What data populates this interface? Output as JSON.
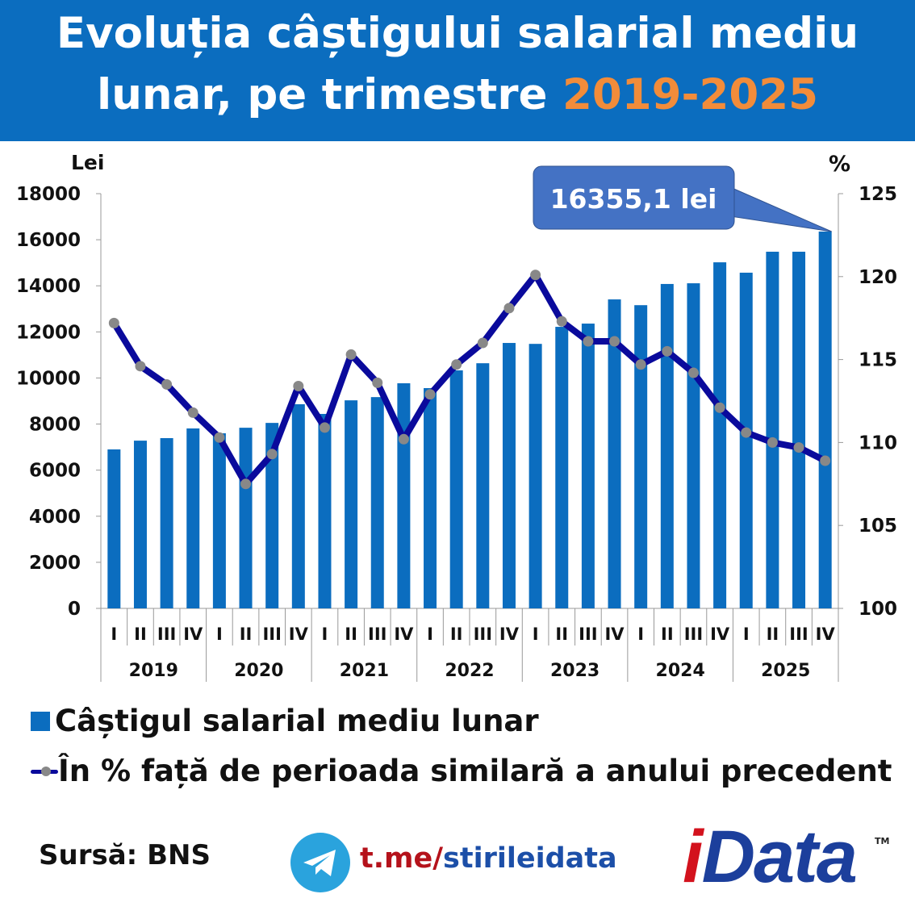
{
  "title": {
    "line1": "Evoluția câștigului salarial mediu",
    "line2_prefix": "lunar, pe trimestre ",
    "line2_highlight": "2019-2025"
  },
  "colors": {
    "banner": "#0b6dbf",
    "highlight": "#f28c3a",
    "bars": "#0b6dbf",
    "line": "#0a0a9c",
    "markers": "#888888",
    "callout": "#4472c4"
  },
  "chart_data": {
    "type": "bar+line",
    "categories_quarters": [
      "I",
      "II",
      "III",
      "IV",
      "I",
      "II",
      "III",
      "IV",
      "I",
      "II",
      "III",
      "IV",
      "I",
      "II",
      "III",
      "IV",
      "I",
      "II",
      "III",
      "IV",
      "I",
      "II",
      "III",
      "IV",
      "I",
      "II",
      "III",
      "IV"
    ],
    "years": [
      "2019",
      "2020",
      "2021",
      "2022",
      "2023",
      "2024",
      "2025"
    ],
    "y_left_label": "Lei",
    "y_left_ticks": [
      "0",
      "2000",
      "4000",
      "6000",
      "8000",
      "10000",
      "12000",
      "14000",
      "16000",
      "18000"
    ],
    "y_left_range": [
      0,
      18000
    ],
    "y_right_label": "%",
    "y_right_ticks": [
      "100",
      "105",
      "110",
      "115",
      "120",
      "125"
    ],
    "y_right_range": [
      100,
      125
    ],
    "series": [
      {
        "name": "Câștigul salarial mediu lunar",
        "type": "bar",
        "axis": "left",
        "values": [
          6900,
          7280,
          7390,
          7810,
          7600,
          7840,
          8050,
          8860,
          8440,
          9030,
          9170,
          9770,
          9560,
          10330,
          10640,
          11520,
          11480,
          12220,
          12360,
          13410,
          13160,
          14080,
          14110,
          15020,
          14570,
          15480,
          15480,
          16355.1
        ]
      },
      {
        "name": "În % față de perioada similară a anului precedent",
        "type": "line",
        "axis": "right",
        "values": [
          117.2,
          114.6,
          113.5,
          111.8,
          110.3,
          107.5,
          109.3,
          113.4,
          110.9,
          115.3,
          113.6,
          110.2,
          112.9,
          114.7,
          116.0,
          118.1,
          120.1,
          117.3,
          116.1,
          116.1,
          114.7,
          115.5,
          114.2,
          112.1,
          110.6,
          110.0,
          109.7,
          108.9
        ]
      }
    ],
    "annotation": "16355,1 lei"
  },
  "legend": {
    "bar": "Câștigul salarial mediu lunar",
    "line": "În % față de perioada similară a anului precedent"
  },
  "footer": {
    "source": "Sursă: BNS",
    "link_prefix": "t.me/",
    "link_suffix": "stirileidata",
    "logo": "iData",
    "tm": "TM"
  }
}
